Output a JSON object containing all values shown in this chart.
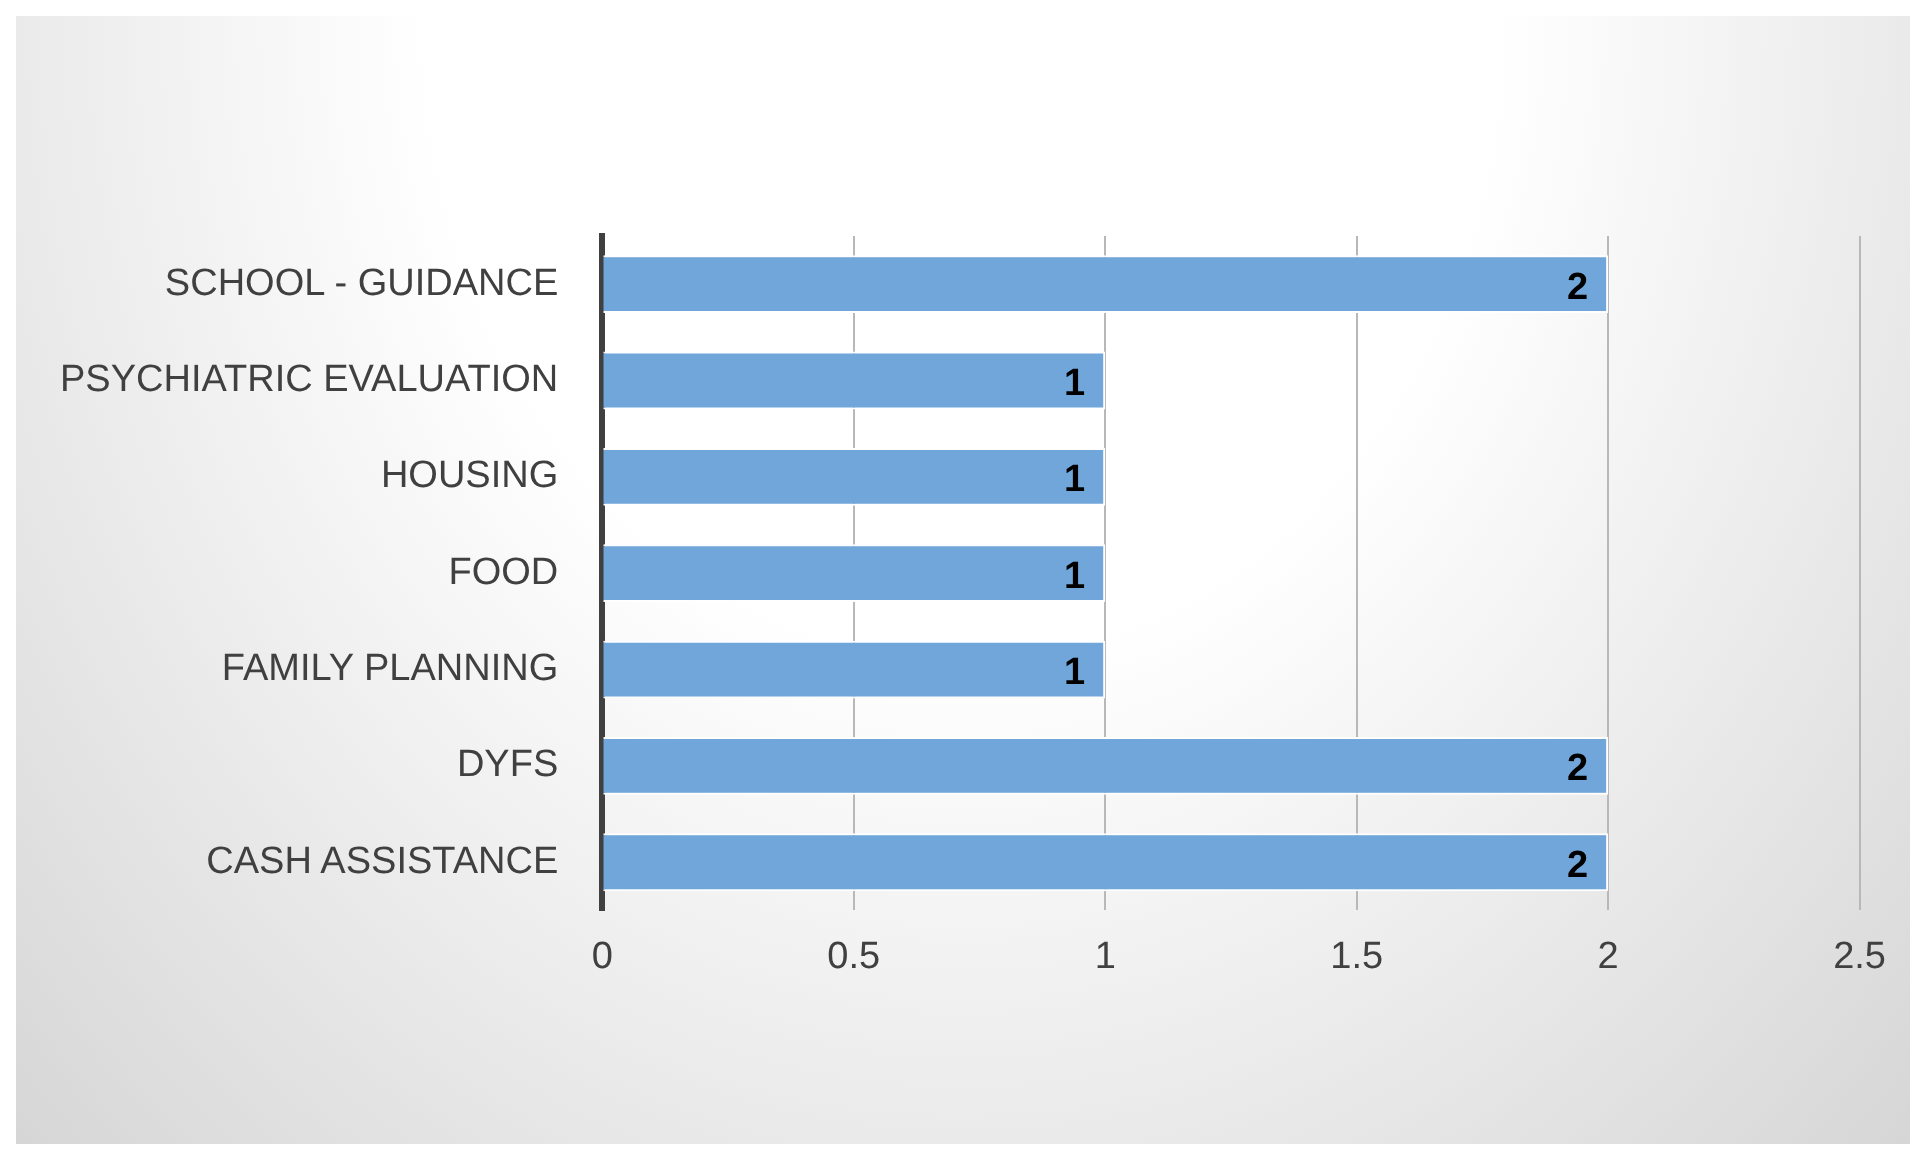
{
  "chart_data": {
    "type": "bar",
    "orientation": "horizontal",
    "categories": [
      "SCHOOL - GUIDANCE",
      "PSYCHIATRIC EVALUATION",
      "HOUSING",
      "FOOD",
      "FAMILY PLANNING",
      "DYFS",
      "CASH ASSISTANCE"
    ],
    "values": [
      2,
      1,
      1,
      1,
      1,
      2,
      2
    ],
    "color": "#70a6da",
    "xlim": [
      0,
      2.5
    ],
    "xticks": [
      0,
      0.5,
      1,
      1.5,
      2,
      2.5
    ],
    "grid": "x",
    "data_labels": true,
    "legend": false
  }
}
